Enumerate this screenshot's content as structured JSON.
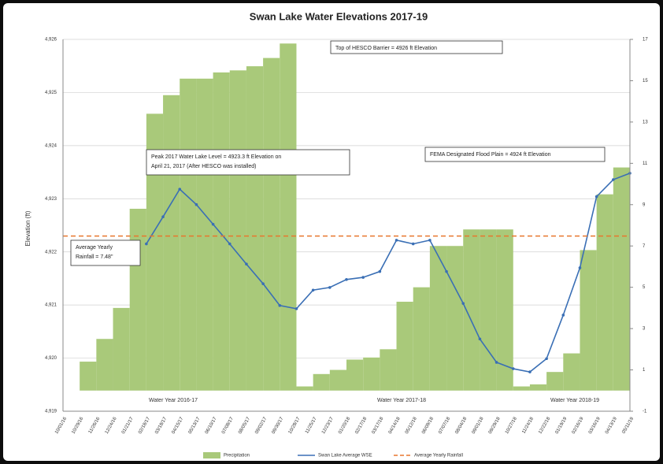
{
  "chart_data": {
    "type": "combo",
    "title": "Swan Lake Water Elevations 2017-19",
    "y_label": "Elevation (ft)",
    "categories": [
      "10/01/16",
      "10/29/16",
      "11/26/16",
      "12/24/16",
      "01/21/17",
      "02/18/17",
      "03/18/17",
      "04/15/17",
      "05/13/17",
      "06/10/17",
      "07/08/17",
      "08/05/17",
      "09/02/17",
      "09/30/17",
      "10/28/17",
      "11/25/17",
      "12/23/17",
      "01/20/18",
      "02/17/18",
      "03/17/18",
      "04/14/18",
      "05/12/18",
      "06/09/18",
      "07/07/18",
      "08/04/18",
      "09/01/18",
      "09/29/18",
      "10/27/18",
      "11/24/18",
      "12/22/18",
      "01/19/19",
      "02/16/19",
      "03/16/19",
      "04/13/19",
      "05/11/19"
    ],
    "ylim": [
      4919,
      4926
    ],
    "yticks": [
      {
        "value": 4919,
        "label": "4,919"
      },
      {
        "value": 4920,
        "label": "4,920"
      },
      {
        "value": 4921,
        "label": "4,921"
      },
      {
        "value": 4922,
        "label": "4,922"
      },
      {
        "value": 4923,
        "label": "4,923"
      },
      {
        "value": 4924,
        "label": "4,924"
      },
      {
        "value": 4925,
        "label": "4,925"
      },
      {
        "value": 4926,
        "label": "4,926"
      }
    ],
    "y2lim": [
      -1,
      17
    ],
    "y2ticks": [
      -1,
      1,
      3,
      5,
      7,
      9,
      11,
      13,
      15,
      17
    ],
    "grid": true,
    "series": [
      {
        "name": "Precipitation",
        "type": "area",
        "axis": "y2",
        "color": "#a9c97a",
        "values": [
          0,
          1.4,
          2.5,
          4.0,
          8.8,
          13.4,
          14.3,
          15.1,
          15.1,
          15.4,
          15.5,
          15.7,
          16.1,
          16.8,
          0.2,
          0.8,
          1.0,
          1.5,
          1.6,
          2.0,
          4.3,
          5.0,
          7.0,
          7.0,
          7.8,
          7.8,
          7.8,
          0.2,
          0.3,
          0.9,
          1.8,
          6.8,
          9.5,
          10.8,
          11.6
        ]
      },
      {
        "name": "Swan Lake Average WSE",
        "type": "line",
        "axis": "y",
        "color": "#3a6fb5",
        "values": [
          null,
          null,
          null,
          null,
          null,
          4922.15,
          4922.66,
          4923.18,
          4922.89,
          4922.52,
          4922.15,
          4921.77,
          4921.4,
          4920.99,
          4920.93,
          4921.28,
          4921.33,
          4921.48,
          4921.52,
          4921.63,
          4922.22,
          4922.15,
          4922.22,
          4921.63,
          4921.03,
          4920.36,
          4919.92,
          4919.8,
          4919.74,
          4919.99,
          4920.81,
          4921.7,
          4923.04,
          4923.36,
          4923.48
        ]
      },
      {
        "name": "Average Yearly Rainfall",
        "type": "hline",
        "axis": "y2",
        "color": "#e8772e",
        "value": 7.48
      }
    ],
    "annotations": [
      {
        "lines": [
          "Top of HESCO Barrier = 4926 ft Elevation"
        ]
      },
      {
        "lines": [
          "Peak 2017 Water Lake Level = 4923.3 ft Elevation on",
          "April 21, 2017 (After HESCO was installed)"
        ]
      },
      {
        "lines": [
          "FEMA Designated Flood Plain = 4924 ft Elevation"
        ]
      },
      {
        "lines": [
          "Average Yearly",
          "Rainfall = 7.48\""
        ]
      }
    ],
    "period_labels": [
      "Water Year 2016-17",
      "Water Year 2017-18",
      "Water Year 2018-19"
    ]
  }
}
